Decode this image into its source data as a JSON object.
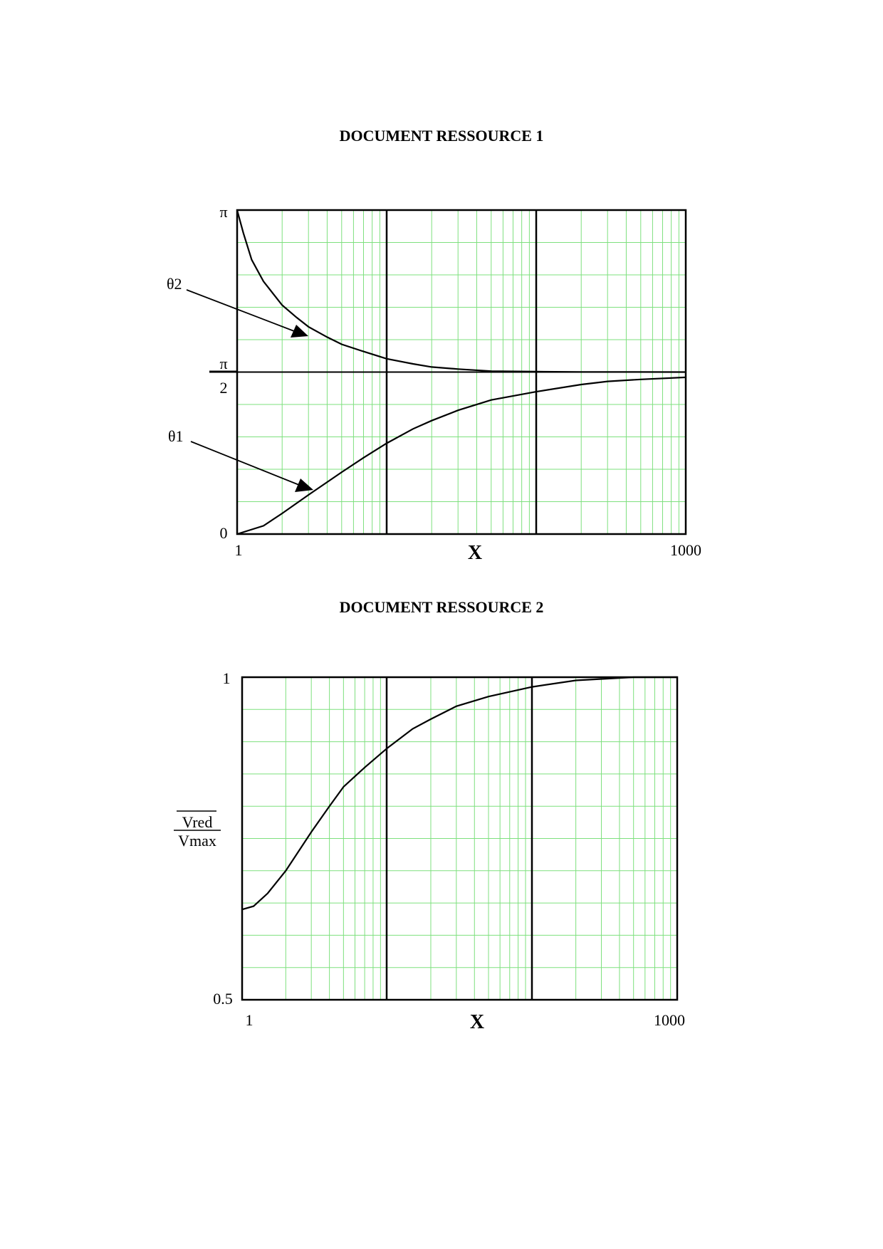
{
  "document": {
    "title1": "DOCUMENT RESSOURCE 1",
    "title2": "DOCUMENT RESSOURCE 2"
  },
  "colors": {
    "grid_minor": "#7ee07e",
    "axis": "#000000",
    "curve": "#000000"
  },
  "chart_data": [
    {
      "type": "line",
      "title": "DOCUMENT RESSOURCE 1",
      "xlabel": "X",
      "x_scale": "log",
      "xlim": [
        1,
        1000
      ],
      "x_tick_labels": [
        "1",
        "1000"
      ],
      "ylim": [
        0,
        3.14159
      ],
      "y_tick_labels": {
        "top": "π",
        "middle_num": "π",
        "middle_den": "2",
        "bottom": "0"
      },
      "grid": true,
      "series": [
        {
          "name": "θ2",
          "x": [
            1,
            1.1,
            1.25,
            1.5,
            2,
            2.5,
            3,
            4,
            5,
            7,
            10,
            15,
            20,
            30,
            50,
            100,
            200,
            1000
          ],
          "y": [
            3.14,
            2.92,
            2.66,
            2.45,
            2.22,
            2.1,
            2.01,
            1.91,
            1.84,
            1.77,
            1.7,
            1.65,
            1.62,
            1.6,
            1.58,
            1.575,
            1.572,
            1.571
          ]
        },
        {
          "name": "θ1",
          "x": [
            1,
            1.5,
            2,
            3,
            5,
            7,
            10,
            15,
            20,
            30,
            50,
            100,
            200,
            300,
            500,
            1000
          ],
          "y": [
            0.0,
            0.08,
            0.2,
            0.38,
            0.6,
            0.74,
            0.88,
            1.02,
            1.1,
            1.2,
            1.3,
            1.38,
            1.45,
            1.48,
            1.5,
            1.52
          ]
        }
      ]
    },
    {
      "type": "line",
      "title": "DOCUMENT RESSOURCE 2",
      "xlabel": "X",
      "ylabel_num": "Vred",
      "ylabel_den": "Vmax",
      "x_scale": "log",
      "xlim": [
        1,
        1000
      ],
      "x_tick_labels": [
        "1",
        "1000"
      ],
      "ylim": [
        0.5,
        1
      ],
      "y_tick_labels": [
        "1",
        "0.5"
      ],
      "grid": true,
      "series": [
        {
          "x": [
            1,
            1.2,
            1.5,
            2,
            3,
            4,
            5,
            7,
            10,
            15,
            20,
            30,
            50,
            100,
            200,
            500,
            1000
          ],
          "y": [
            0.64,
            0.645,
            0.665,
            0.7,
            0.76,
            0.8,
            0.83,
            0.86,
            0.89,
            0.92,
            0.935,
            0.955,
            0.97,
            0.985,
            0.995,
            1.0,
            1.0
          ]
        }
      ]
    }
  ]
}
